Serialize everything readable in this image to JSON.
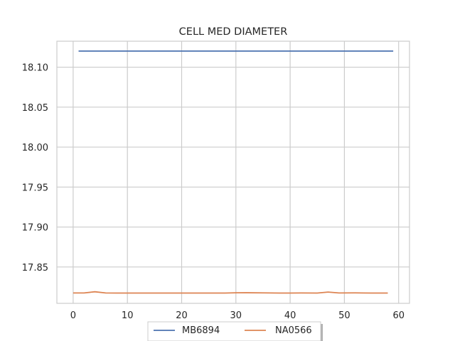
{
  "chart_data": {
    "type": "line",
    "title": "CELL MED DIAMETER",
    "xlabel": "",
    "ylabel": "",
    "xlim": [
      -3,
      62
    ],
    "ylim": [
      17.8045,
      18.1325
    ],
    "xticks": [
      0,
      10,
      20,
      30,
      40,
      50,
      60
    ],
    "yticks": [
      17.85,
      17.9,
      17.95,
      18.0,
      18.05,
      18.1
    ],
    "ytick_labels": [
      "17.85",
      "17.90",
      "17.95",
      "18.00",
      "18.05",
      "18.10"
    ],
    "xtick_labels": [
      "0",
      "10",
      "20",
      "30",
      "40",
      "50",
      "60"
    ],
    "grid": true,
    "legend_position": "bottom-center",
    "series": [
      {
        "name": "MB6894",
        "color": "#4c72b0",
        "x": [
          1,
          5,
          10,
          15,
          20,
          25,
          30,
          35,
          40,
          45,
          50,
          55,
          59
        ],
        "y": [
          18.1202,
          18.1202,
          18.1202,
          18.1202,
          18.1202,
          18.1202,
          18.1202,
          18.1202,
          18.1202,
          18.1202,
          18.1202,
          18.1202,
          18.1202
        ]
      },
      {
        "name": "NA0566",
        "color": "#dd8452",
        "x": [
          0,
          2,
          4,
          6,
          8,
          10,
          15,
          20,
          25,
          28,
          30,
          32,
          35,
          38,
          40,
          42,
          45,
          47,
          49,
          52,
          55,
          58
        ],
        "y": [
          17.8175,
          17.8175,
          17.819,
          17.8175,
          17.8174,
          17.8174,
          17.8174,
          17.8174,
          17.8174,
          17.8174,
          17.8177,
          17.8178,
          17.8176,
          17.8174,
          17.8174,
          17.8175,
          17.8174,
          17.8186,
          17.8175,
          17.8176,
          17.8174,
          17.8174
        ]
      }
    ]
  }
}
